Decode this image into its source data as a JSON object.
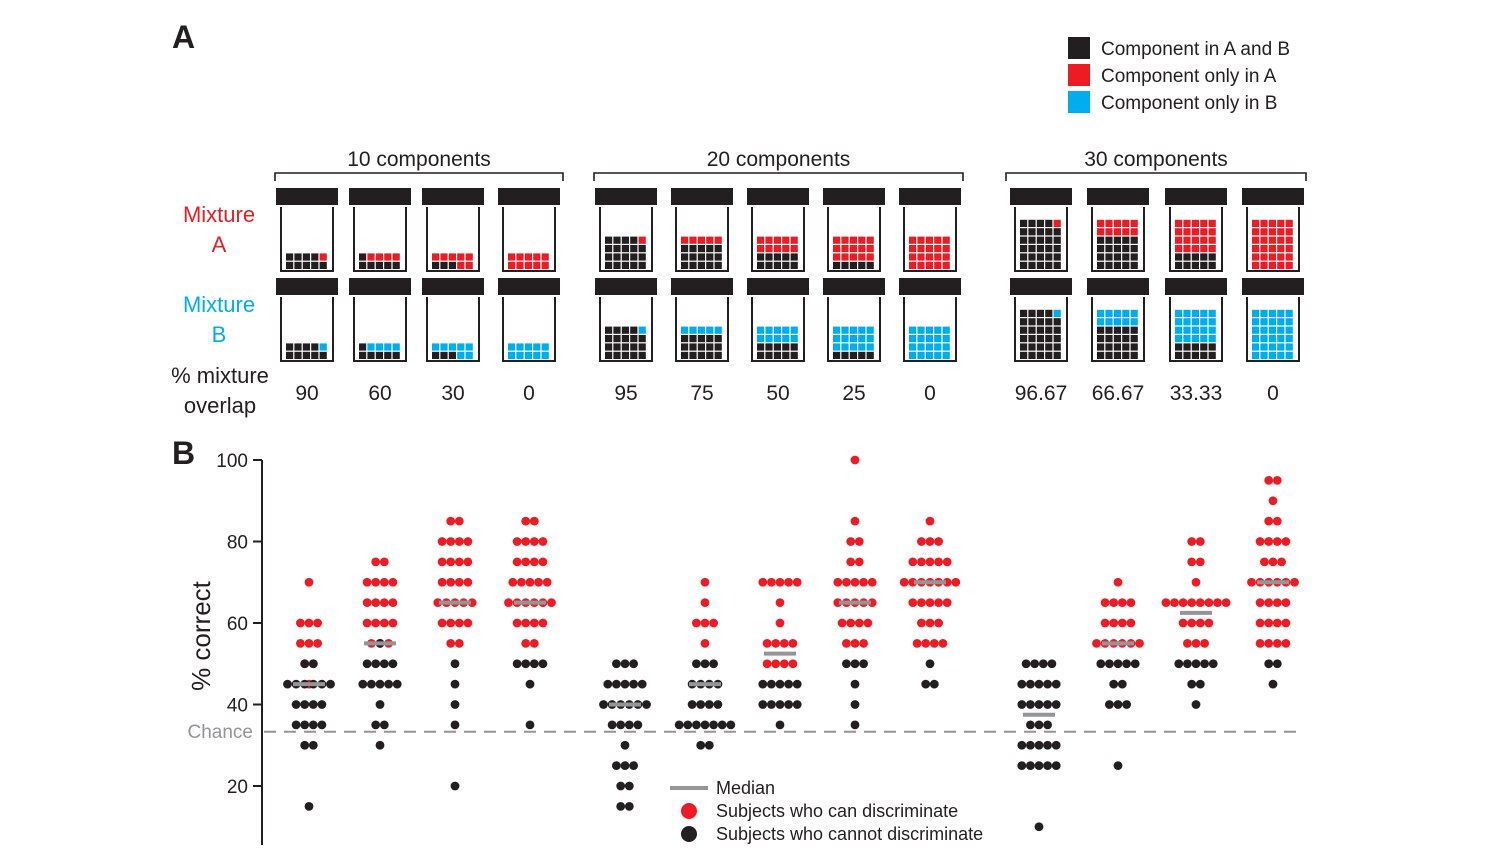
{
  "panel_a": {
    "label": "A",
    "legend": [
      {
        "label": "Component in A and B",
        "color": "#231f20"
      },
      {
        "label": "Component only in A",
        "color": "#ed1c24"
      },
      {
        "label": "Component only in B",
        "color": "#00aeef"
      }
    ],
    "mixture_a": [
      "Mixture",
      "A"
    ],
    "mixture_b": [
      "Mixture",
      "B"
    ],
    "overlap_label": [
      "% mixture",
      "overlap"
    ],
    "colors": {
      "shared": "#231f20",
      "only_a": "#ed1c24",
      "only_b": "#00aeef",
      "frame": "#231f20"
    },
    "groups": [
      {
        "label": "10 components",
        "components": 10,
        "cols": 5,
        "jars": [
          {
            "overlap": "90",
            "shared": 9,
            "unique": 1
          },
          {
            "overlap": "60",
            "shared": 6,
            "unique": 4
          },
          {
            "overlap": "30",
            "shared": 3,
            "unique": 7
          },
          {
            "overlap": "0",
            "shared": 0,
            "unique": 10
          }
        ]
      },
      {
        "label": "20 components",
        "components": 20,
        "cols": 5,
        "jars": [
          {
            "overlap": "95",
            "shared": 19,
            "unique": 1
          },
          {
            "overlap": "75",
            "shared": 15,
            "unique": 5
          },
          {
            "overlap": "50",
            "shared": 10,
            "unique": 10
          },
          {
            "overlap": "25",
            "shared": 5,
            "unique": 15
          },
          {
            "overlap": "0",
            "shared": 0,
            "unique": 20
          }
        ]
      },
      {
        "label": "30 components",
        "components": 30,
        "cols": 5,
        "jars": [
          {
            "overlap": "96.67",
            "shared": 29,
            "unique": 1
          },
          {
            "overlap": "66.67",
            "shared": 20,
            "unique": 10
          },
          {
            "overlap": "33.33",
            "shared": 10,
            "unique": 20
          },
          {
            "overlap": "0",
            "shared": 0,
            "unique": 30
          }
        ]
      }
    ]
  },
  "panel_b": {
    "label": "B",
    "chart_data": {
      "type": "scatter",
      "ylabel": "% correct",
      "ylim": [
        8,
        100
      ],
      "yticks": [
        "100",
        "80",
        "60",
        "40",
        "20"
      ],
      "chance": {
        "label": "Chance",
        "value": 33.3
      },
      "legend": {
        "median": "Median",
        "can": "Subjects who can discriminate",
        "cannot": "Subjects who cannot discriminate"
      },
      "colors": {
        "can": "#ed1c24",
        "cannot": "#231f20",
        "median": "#939598",
        "chance": "#939598"
      },
      "columns": [
        {
          "group": 0,
          "overlap": "90",
          "median": 45,
          "can": [
            [
              70,
              1
            ],
            [
              60,
              3
            ],
            [
              55,
              3
            ],
            [
              50,
              2
            ],
            [
              45,
              1
            ]
          ],
          "cannot": [
            [
              50,
              2
            ],
            [
              45,
              6
            ],
            [
              40,
              4
            ],
            [
              35,
              4
            ],
            [
              30,
              2
            ],
            [
              15,
              1
            ]
          ]
        },
        {
          "group": 0,
          "overlap": "60",
          "median": 55,
          "can": [
            [
              75,
              2
            ],
            [
              70,
              4
            ],
            [
              65,
              4
            ],
            [
              60,
              4
            ],
            [
              55,
              3
            ]
          ],
          "cannot": [
            [
              55,
              1
            ],
            [
              50,
              4
            ],
            [
              45,
              5
            ],
            [
              40,
              1
            ],
            [
              35,
              2
            ],
            [
              30,
              1
            ]
          ]
        },
        {
          "group": 0,
          "overlap": "30",
          "median": 65,
          "can": [
            [
              85,
              2
            ],
            [
              80,
              4
            ],
            [
              75,
              4
            ],
            [
              70,
              4
            ],
            [
              65,
              5
            ],
            [
              60,
              4
            ],
            [
              55,
              2
            ]
          ],
          "cannot": [
            [
              50,
              1
            ],
            [
              45,
              1
            ],
            [
              40,
              1
            ],
            [
              35,
              1
            ],
            [
              20,
              1
            ]
          ]
        },
        {
          "group": 0,
          "overlap": "0",
          "median": 65,
          "can": [
            [
              85,
              2
            ],
            [
              80,
              4
            ],
            [
              75,
              4
            ],
            [
              70,
              5
            ],
            [
              65,
              6
            ],
            [
              60,
              4
            ],
            [
              55,
              2
            ]
          ],
          "cannot": [
            [
              50,
              4
            ],
            [
              45,
              1
            ],
            [
              35,
              1
            ]
          ]
        },
        {
          "group": 1,
          "overlap": "95",
          "median": 40,
          "can": [],
          "cannot": [
            [
              50,
              3
            ],
            [
              45,
              5
            ],
            [
              40,
              6
            ],
            [
              35,
              4
            ],
            [
              30,
              1
            ],
            [
              25,
              3
            ],
            [
              20,
              2
            ],
            [
              15,
              2
            ]
          ]
        },
        {
          "group": 1,
          "overlap": "75",
          "median": 45,
          "can": [
            [
              70,
              1
            ],
            [
              65,
              1
            ],
            [
              60,
              3
            ],
            [
              55,
              1
            ]
          ],
          "cannot": [
            [
              50,
              3
            ],
            [
              45,
              4
            ],
            [
              40,
              4
            ],
            [
              35,
              7
            ],
            [
              30,
              2
            ]
          ]
        },
        {
          "group": 1,
          "overlap": "50",
          "median": 52.5,
          "can": [
            [
              70,
              5
            ],
            [
              65,
              1
            ],
            [
              60,
              1
            ],
            [
              55,
              4
            ],
            [
              50,
              4
            ]
          ],
          "cannot": [
            [
              45,
              5
            ],
            [
              40,
              5
            ],
            [
              35,
              1
            ]
          ]
        },
        {
          "group": 1,
          "overlap": "25",
          "median": 65,
          "can": [
            [
              100,
              1
            ],
            [
              85,
              1
            ],
            [
              80,
              2
            ],
            [
              75,
              2
            ],
            [
              70,
              5
            ],
            [
              65,
              5
            ],
            [
              60,
              4
            ],
            [
              55,
              3
            ]
          ],
          "cannot": [
            [
              50,
              3
            ],
            [
              45,
              1
            ],
            [
              40,
              1
            ],
            [
              35,
              1
            ]
          ]
        },
        {
          "group": 1,
          "overlap": "0",
          "median": 70,
          "can": [
            [
              85,
              1
            ],
            [
              80,
              3
            ],
            [
              75,
              5
            ],
            [
              70,
              7
            ],
            [
              65,
              5
            ],
            [
              60,
              3
            ],
            [
              55,
              4
            ]
          ],
          "cannot": [
            [
              50,
              1
            ],
            [
              45,
              2
            ]
          ]
        },
        {
          "group": 2,
          "overlap": "96.67",
          "median": 37.5,
          "can": [],
          "cannot": [
            [
              50,
              4
            ],
            [
              45,
              5
            ],
            [
              40,
              5
            ],
            [
              35,
              3
            ],
            [
              30,
              5
            ],
            [
              25,
              5
            ],
            [
              10,
              1
            ]
          ]
        },
        {
          "group": 2,
          "overlap": "66.67",
          "median": 55,
          "can": [
            [
              70,
              1
            ],
            [
              65,
              4
            ],
            [
              60,
              4
            ],
            [
              55,
              6
            ]
          ],
          "cannot": [
            [
              50,
              5
            ],
            [
              45,
              2
            ],
            [
              40,
              3
            ],
            [
              25,
              1
            ]
          ]
        },
        {
          "group": 2,
          "overlap": "33.33",
          "median": 62.5,
          "can": [
            [
              80,
              2
            ],
            [
              75,
              2
            ],
            [
              70,
              1
            ],
            [
              65,
              8
            ],
            [
              60,
              4
            ],
            [
              55,
              3
            ]
          ],
          "cannot": [
            [
              50,
              5
            ],
            [
              45,
              2
            ],
            [
              40,
              1
            ]
          ]
        },
        {
          "group": 2,
          "overlap": "0",
          "median": 70,
          "can": [
            [
              95,
              2
            ],
            [
              90,
              1
            ],
            [
              85,
              2
            ],
            [
              80,
              4
            ],
            [
              75,
              3
            ],
            [
              70,
              6
            ],
            [
              65,
              4
            ],
            [
              60,
              4
            ],
            [
              55,
              4
            ]
          ],
          "cannot": [
            [
              50,
              2
            ],
            [
              45,
              1
            ]
          ]
        }
      ]
    }
  }
}
